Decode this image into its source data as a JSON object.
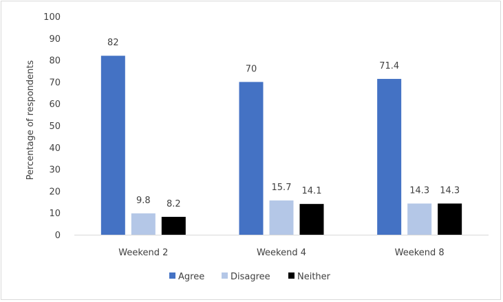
{
  "chart_data": {
    "type": "bar",
    "title": "",
    "xlabel": "",
    "ylabel": "Percentage of respondents",
    "ylim": [
      0,
      100
    ],
    "yticks": [
      0,
      10,
      20,
      30,
      40,
      50,
      60,
      70,
      80,
      90,
      100
    ],
    "grid": false,
    "legend_position": "bottom",
    "categories": [
      "Weekend 2",
      "Weekend 4",
      "Weekend 8"
    ],
    "series": [
      {
        "name": "Agree",
        "color": "#4472c4",
        "values": [
          82,
          70,
          71.4
        ],
        "labels": [
          "82",
          "70",
          "71.4"
        ]
      },
      {
        "name": "Disagree",
        "color": "#b4c7e7",
        "values": [
          9.8,
          15.7,
          14.3
        ],
        "labels": [
          "9.8",
          "15.7",
          "14.3"
        ]
      },
      {
        "name": "Neither",
        "color": "#000000",
        "values": [
          8.2,
          14.1,
          14.3
        ],
        "labels": [
          "8.2",
          "14.1",
          "14.3"
        ]
      }
    ],
    "axis_color": "#d9d9d9"
  }
}
